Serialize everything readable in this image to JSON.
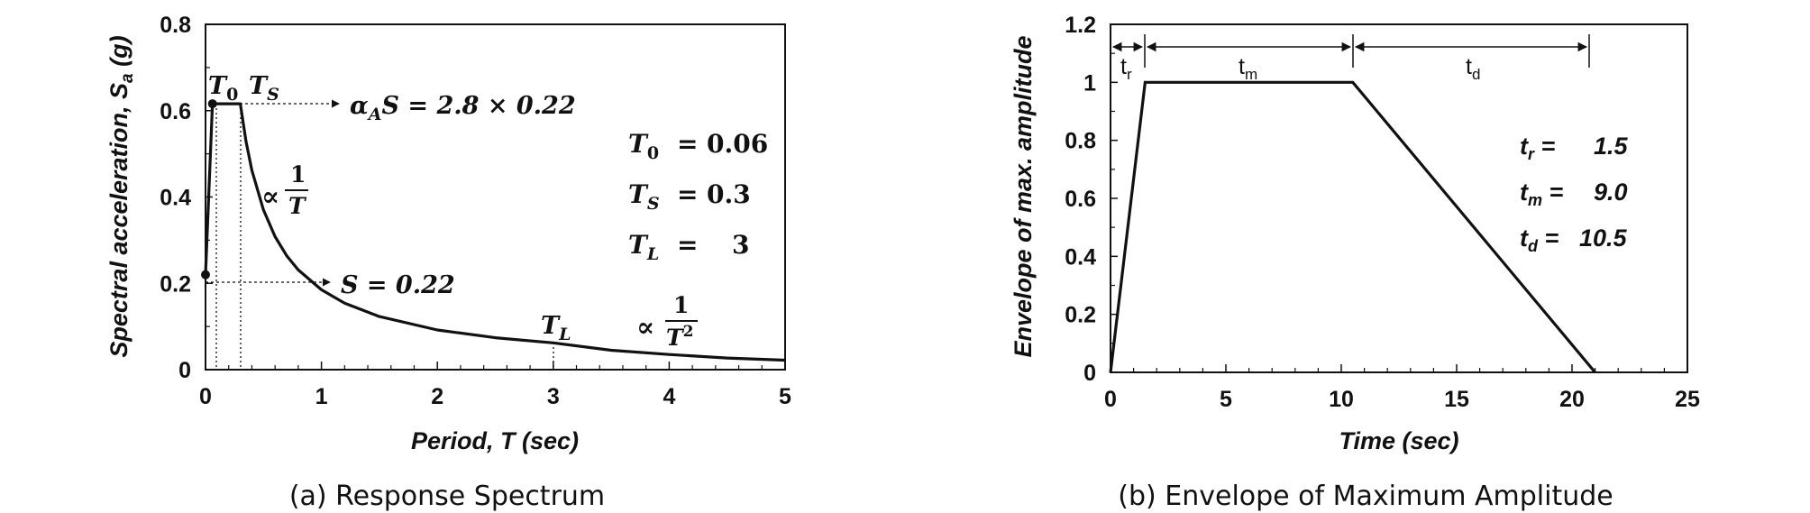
{
  "chart_data": [
    {
      "type": "line",
      "caption": "(a) Response Spectrum",
      "xlabel": "Period, T (sec)",
      "ylabel_main": "Spectral acceleration, S",
      "ylabel_sub": "a",
      "ylabel_tail": " (g)",
      "xlim": [
        0,
        5
      ],
      "ylim": [
        0,
        0.8
      ],
      "xticks": [
        "0",
        "1",
        "2",
        "3",
        "4",
        "5"
      ],
      "yticks": [
        "0",
        "0.2",
        "0.4",
        "0.6",
        "0.8"
      ],
      "grid": false,
      "series": [
        {
          "x": [
            0,
            0.06,
            0.3,
            0.35,
            0.4,
            0.5,
            0.6,
            0.7,
            0.8,
            1.0,
            1.2,
            1.5,
            2.0,
            2.5,
            3.0,
            3.5,
            4.0,
            4.5,
            5.0
          ],
          "y": [
            0.22,
            0.616,
            0.616,
            0.528,
            0.462,
            0.37,
            0.308,
            0.264,
            0.231,
            0.185,
            0.154,
            0.123,
            0.092,
            0.074,
            0.062,
            0.045,
            0.035,
            0.027,
            0.022
          ]
        }
      ],
      "markers": [
        {
          "x": 0,
          "y": 0.22
        },
        {
          "x": 0.06,
          "y": 0.616
        }
      ],
      "annotations": {
        "t0_label_main": "T",
        "t0_label_sub": "0",
        "ts_label_main": "T",
        "ts_label_sub": "S",
        "plateau_main": "α",
        "plateau_sub": "A",
        "plateau_rest": "S = 2.8 × 0.22",
        "base_label": "S = 0.22",
        "prop_symbol": "∝",
        "prop_1_num": "1",
        "prop_1_den": "T",
        "prop_2_num": "1",
        "prop_2_den": "T",
        "prop_2_exp": "2",
        "tl_label_main": "T",
        "tl_label_sub": "L",
        "params": [
          {
            "name": "T",
            "sub": "0",
            "eq": "=",
            "val": "0.06"
          },
          {
            "name": "T",
            "sub": "S",
            "eq": "=",
            "val": "0.3"
          },
          {
            "name": "T",
            "sub": "L",
            "eq": "=",
            "val": "3"
          }
        ]
      }
    },
    {
      "type": "line",
      "caption": "(b) Envelope of Maximum Amplitude",
      "xlabel": "Time (sec)",
      "ylabel": "Envelope of max. amplitude",
      "xlim": [
        0,
        25
      ],
      "ylim": [
        0,
        1.2
      ],
      "xticks": [
        "0",
        "5",
        "10",
        "15",
        "20",
        "25"
      ],
      "yticks": [
        "0",
        "0.2",
        "0.4",
        "0.6",
        "0.8",
        "1",
        "1.2"
      ],
      "grid": false,
      "series": [
        {
          "x": [
            0,
            1.5,
            10.5,
            21
          ],
          "y": [
            0,
            1,
            1,
            0
          ]
        }
      ],
      "annotations": {
        "tr_main": "t",
        "tr_sub": "r",
        "tm_main": "t",
        "tm_sub": "m",
        "td_main": "t",
        "td_sub": "d",
        "params": [
          {
            "name": "t",
            "sub": "r",
            "eq": " =",
            "val": "1.5"
          },
          {
            "name": "t",
            "sub": "m",
            "eq": " =",
            "val": "9.0"
          },
          {
            "name": "t",
            "sub": "d",
            "eq": " =",
            "val": "10.5"
          }
        ]
      }
    }
  ]
}
